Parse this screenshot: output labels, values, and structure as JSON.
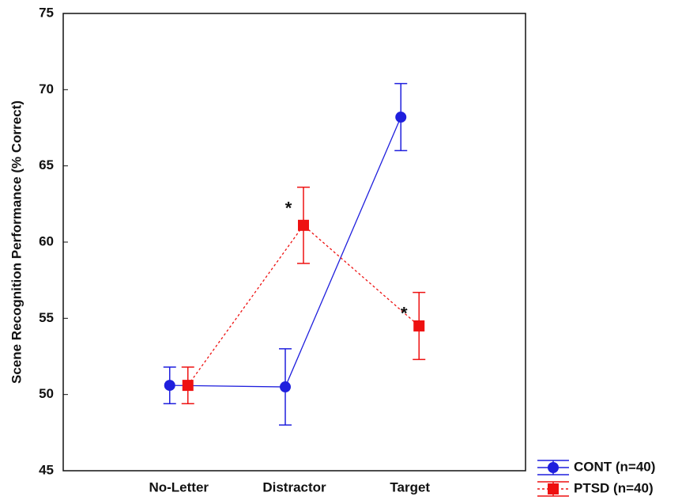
{
  "chart_data": {
    "type": "line",
    "y_label": "Scene Recognition Performance (% Correct)",
    "categories": [
      "No-Letter",
      "Distractor",
      "Target"
    ],
    "series": [
      {
        "name": "CONT (n=40)",
        "color": "#1f1fdd",
        "marker": "circle",
        "dash": false,
        "values": [
          50.6,
          50.5,
          68.2
        ],
        "errors": [
          1.2,
          2.5,
          2.2
        ]
      },
      {
        "name": "PTSD (n=40)",
        "color": "#ee1111",
        "marker": "square",
        "dash": true,
        "values": [
          50.6,
          61.1,
          54.5
        ],
        "errors": [
          1.2,
          2.5,
          2.2
        ]
      }
    ],
    "annotations": [
      {
        "text": "*",
        "series": 1,
        "category": 1
      },
      {
        "text": "*",
        "series": 1,
        "category": 2
      }
    ],
    "ylim": [
      45,
      75
    ],
    "yticks": [
      45,
      50,
      55,
      60,
      65,
      70,
      75
    ]
  }
}
